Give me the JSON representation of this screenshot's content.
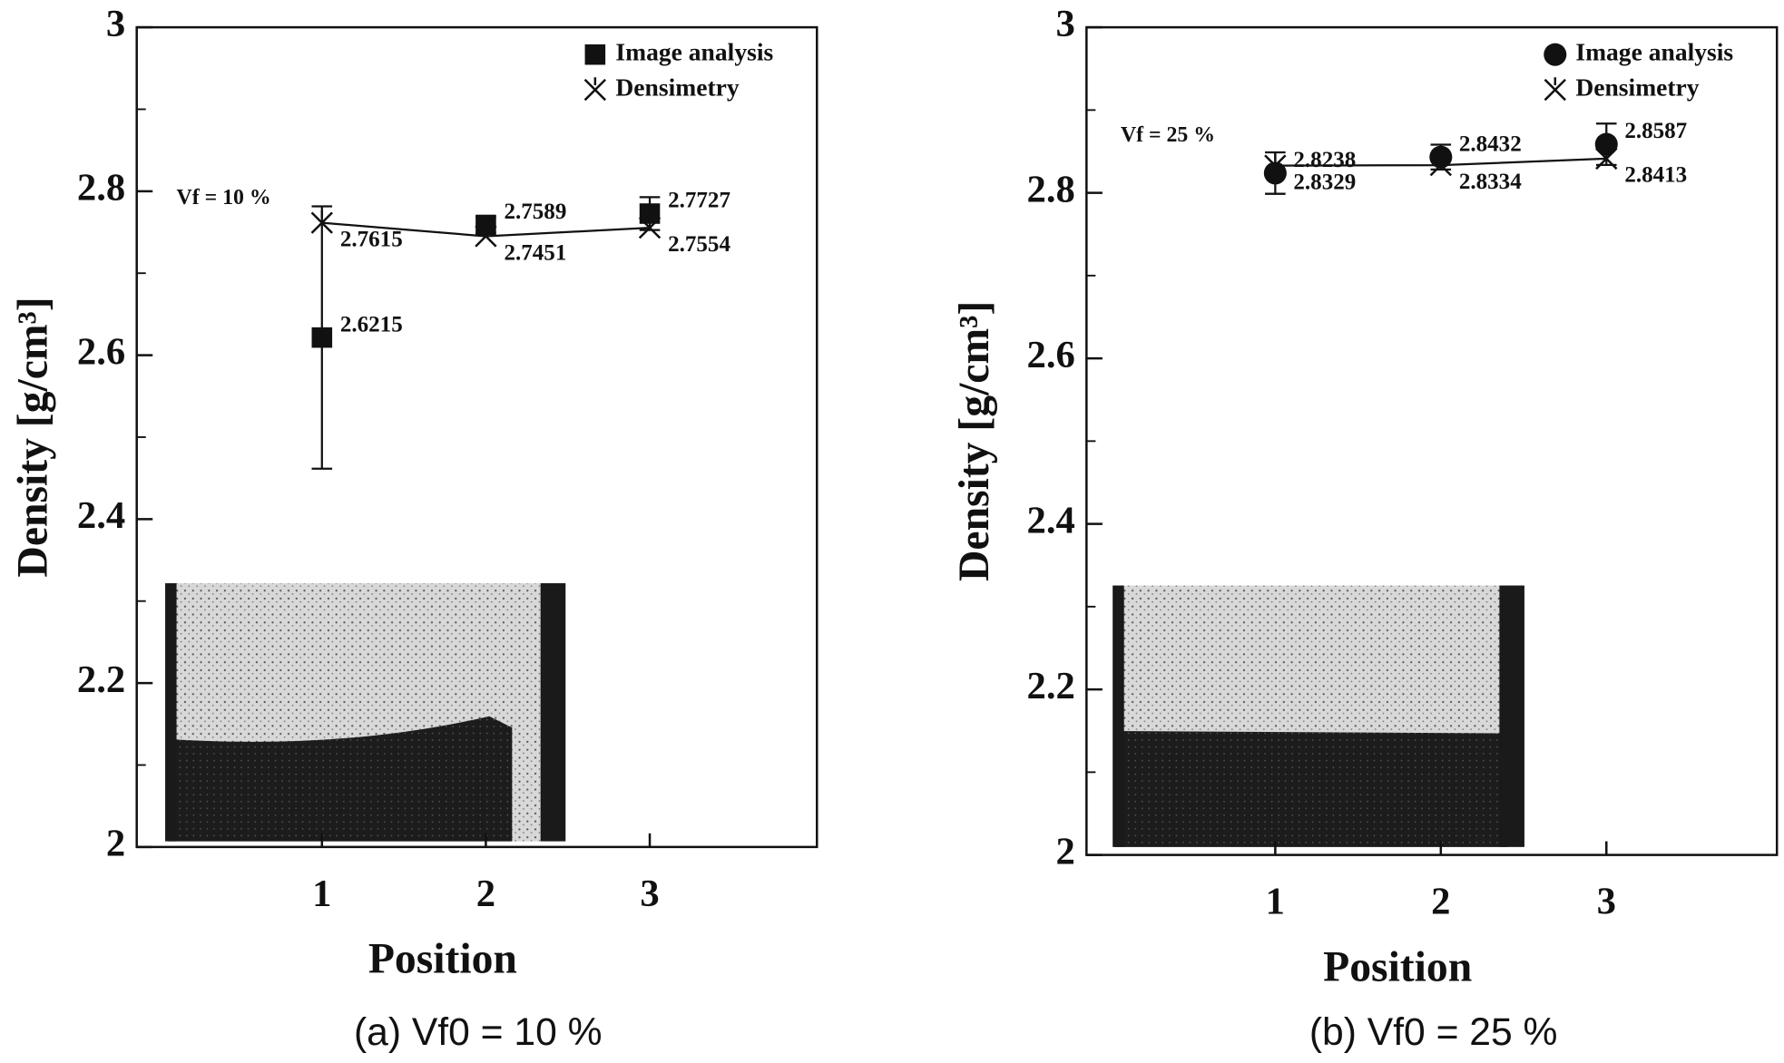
{
  "chart_data": [
    {
      "type": "line",
      "annotation": "Vf = 10 %",
      "caption": "(a)  Vf0 = 10 %",
      "xlabel": "Position",
      "ylabel": "Density [g/cm³]",
      "xlim": [
        -0.13,
        4.02
      ],
      "ylim": [
        2,
        3
      ],
      "xticks": [
        1,
        2,
        3
      ],
      "yticks": [
        2,
        2.2,
        2.4,
        2.6,
        2.8,
        3
      ],
      "yminor": [
        2.1,
        2.3,
        2.5,
        2.7,
        2.9
      ],
      "legend": "upper right",
      "series": [
        {
          "name": "Image analysis",
          "color": "#111111",
          "marker": "square",
          "linestyle": "none",
          "x": [
            1,
            2,
            3
          ],
          "values": [
            2.6215,
            2.7589,
            2.7727
          ],
          "errors": [
            0.16,
            0.01,
            0.02
          ]
        },
        {
          "name": "Densimetry",
          "color": "#111111",
          "marker": "x",
          "linestyle": "solid",
          "x": [
            1,
            2,
            3
          ],
          "values": [
            2.7615,
            2.7451,
            2.7554
          ]
        }
      ]
    },
    {
      "type": "line",
      "annotation": "Vf = 25 %",
      "caption": "(b)  Vf0 = 25 %",
      "xlabel": "Position",
      "ylabel": "Density [g/cm³]",
      "xlim": [
        -0.14,
        4.03
      ],
      "ylim": [
        2,
        3
      ],
      "xticks": [
        1,
        2,
        3
      ],
      "yticks": [
        2,
        2.2,
        2.4,
        2.6,
        2.8,
        3
      ],
      "yminor": [
        2.1,
        2.3,
        2.5,
        2.7,
        2.9
      ],
      "legend": "upper right",
      "series": [
        {
          "name": "Image analysis",
          "color": "#111111",
          "marker": "circle",
          "linestyle": "none",
          "x": [
            1,
            2,
            3
          ],
          "values": [
            2.8238,
            2.8432,
            2.8587
          ],
          "errors": [
            0.025,
            0.015,
            0.025
          ]
        },
        {
          "name": "Densimetry",
          "color": "#111111",
          "marker": "x",
          "linestyle": "solid",
          "x": [
            1,
            2,
            3
          ],
          "values": [
            2.8329,
            2.8334,
            2.8413
          ]
        }
      ]
    }
  ]
}
